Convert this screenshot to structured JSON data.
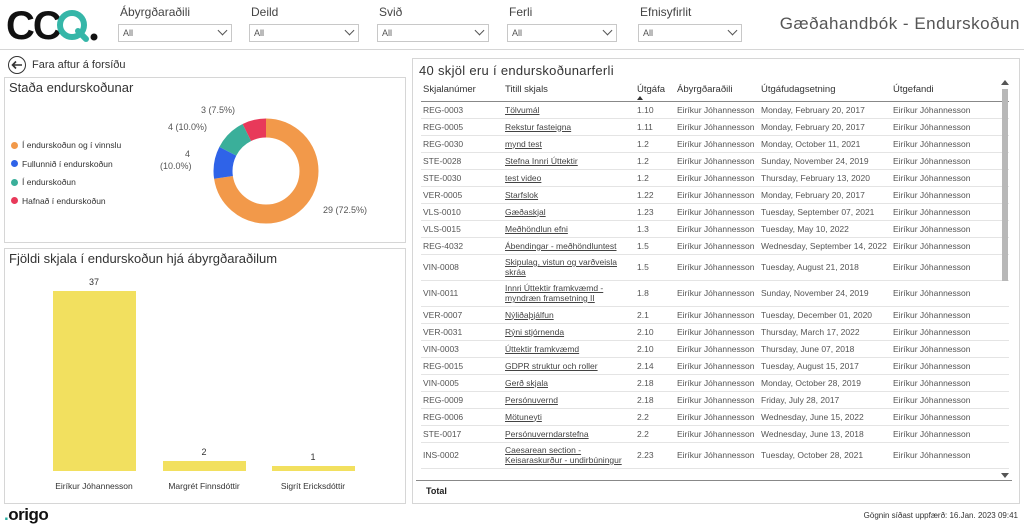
{
  "header": {
    "logo_text": "CCQ.",
    "title": "Gæðahandbók - Endurskoðun",
    "filters": [
      {
        "label": "Ábyrgðaraðili",
        "value": "All"
      },
      {
        "label": "Deild",
        "value": "All"
      },
      {
        "label": "Svið",
        "value": "All"
      },
      {
        "label": "Ferli",
        "value": "All"
      },
      {
        "label": "Efnisyfirlit",
        "value": "All"
      }
    ]
  },
  "back_link": "Fara aftur á forsíðu",
  "status_panel": {
    "title": "Staða endurskoðunar",
    "legend": [
      {
        "label": "Í endurskoðun og í vinnslu",
        "color": "#f2994a"
      },
      {
        "label": "Fullunnið í endurskoðun",
        "color": "#2f63e8"
      },
      {
        "label": "Í endurskoðun",
        "color": "#3aaf9a"
      },
      {
        "label": "Hafnað í endurskoðun",
        "color": "#e8395a"
      }
    ],
    "labels": {
      "a": "29 (72.5%)",
      "b1": "4",
      "b2": "(10.0%)",
      "c": "4 (10.0%)",
      "d": "3 (7.5%)"
    }
  },
  "owners_panel": {
    "title": "Fjöldi skjala í endurskoðun hjá ábyrgðaraðilum"
  },
  "chart_data": [
    {
      "type": "pie",
      "title": "Staða endurskoðunar",
      "categories": [
        "Í endurskoðun og í vinnslu",
        "Fullunnið í endurskoðun",
        "Í endurskoðun",
        "Hafnað í endurskoðun"
      ],
      "values": [
        29,
        4,
        4,
        3
      ],
      "percent": [
        72.5,
        10.0,
        10.0,
        7.5
      ],
      "colors": [
        "#f2994a",
        "#2f63e8",
        "#3aaf9a",
        "#e8395a"
      ],
      "donut": true,
      "legend": "left"
    },
    {
      "type": "bar",
      "title": "Fjöldi skjala í endurskoðun hjá ábyrgðaraðilum",
      "categories": [
        "Eiríkur Jóhannesson",
        "Margrét Finnsdóttir",
        "Sigrít Ericksdóttir"
      ],
      "values": [
        37,
        2,
        1
      ],
      "color": "#f2e05f"
    }
  ],
  "table": {
    "title": "40 skjöl eru í endurskoðunarferli",
    "columns": [
      "Skjalanúmer",
      "Titill skjals",
      "Útgáfa",
      "Ábyrgðaraðili",
      "Útgáfudagsetning",
      "Útgefandi"
    ],
    "rows": [
      [
        "REG-0003",
        "Tölvumál",
        "1.10",
        "Eiríkur Jóhannesson",
        "Monday, February 20, 2017",
        "Eiríkur Jóhannesson"
      ],
      [
        "REG-0005",
        "Rekstur fasteigna",
        "1.11",
        "Eiríkur Jóhannesson",
        "Monday, February 20, 2017",
        "Eiríkur Jóhannesson"
      ],
      [
        "REG-0030",
        "mynd test",
        "1.2",
        "Eiríkur Jóhannesson",
        "Monday, October 11, 2021",
        "Eiríkur Jóhannesson"
      ],
      [
        "STE-0028",
        "Stefna Innri Úttektir",
        "1.2",
        "Eiríkur Jóhannesson",
        "Sunday, November 24, 2019",
        "Eiríkur Jóhannesson"
      ],
      [
        "STE-0030",
        "test video",
        "1.2",
        "Eiríkur Jóhannesson",
        "Thursday, February 13, 2020",
        "Eiríkur Jóhannesson"
      ],
      [
        "VER-0005",
        "Starfslok",
        "1.22",
        "Eiríkur Jóhannesson",
        "Monday, February 20, 2017",
        "Eiríkur Jóhannesson"
      ],
      [
        "VLS-0010",
        "Gæðaskjal",
        "1.23",
        "Eiríkur Jóhannesson",
        "Tuesday, September 07, 2021",
        "Eiríkur Jóhannesson"
      ],
      [
        "VLS-0015",
        "Meðhöndlun efni",
        "1.3",
        "Eiríkur Jóhannesson",
        "Tuesday, May 10, 2022",
        "Eiríkur Jóhannesson"
      ],
      [
        "REG-4032",
        "Ábendingar - meðhöndluntest",
        "1.5",
        "Eiríkur Jóhannesson",
        "Wednesday, September 14, 2022",
        "Eiríkur Jóhannesson"
      ],
      [
        "VIN-0008",
        "Skipulag, vistun og varðveisla skráa",
        "1.5",
        "Eiríkur Jóhannesson",
        "Tuesday, August 21, 2018",
        "Eiríkur Jóhannesson"
      ],
      [
        "VIN-0011",
        "Innri Úttektir framkvæmd - myndræn framsetning II",
        "1.8",
        "Eiríkur Jóhannesson",
        "Sunday, November 24, 2019",
        "Eiríkur Jóhannesson"
      ],
      [
        "VER-0007",
        "Nýliðaþjálfun",
        "2.1",
        "Eiríkur Jóhannesson",
        "Tuesday, December 01, 2020",
        "Eiríkur Jóhannesson"
      ],
      [
        "VER-0031",
        "Rýni stjórnenda",
        "2.10",
        "Eiríkur Jóhannesson",
        "Thursday, March 17, 2022",
        "Eiríkur Jóhannesson"
      ],
      [
        "VIN-0003",
        "Úttektir framkvæmd",
        "2.10",
        "Eiríkur Jóhannesson",
        "Thursday, June 07, 2018",
        "Eiríkur Jóhannesson"
      ],
      [
        "REG-0015",
        "GDPR struktur och roller",
        "2.14",
        "Eiríkur Jóhannesson",
        "Tuesday, August 15, 2017",
        "Eiríkur Jóhannesson"
      ],
      [
        "VIN-0005",
        "Gerð skjala",
        "2.18",
        "Eiríkur Jóhannesson",
        "Monday, October 28, 2019",
        "Eiríkur Jóhannesson"
      ],
      [
        "REG-0009",
        "Persónuvernd",
        "2.18",
        "Eiríkur Jóhannesson",
        "Friday, July 28, 2017",
        "Eiríkur Jóhannesson"
      ],
      [
        "REG-0006",
        "Mötuneyti",
        "2.2",
        "Eiríkur Jóhannesson",
        "Wednesday, June 15, 2022",
        "Eiríkur Jóhannesson"
      ],
      [
        "STE-0017",
        "Persónuverndarstefna",
        "2.2",
        "Eiríkur Jóhannesson",
        "Wednesday, June 13, 2018",
        "Eiríkur Jóhannesson"
      ],
      [
        "INS-0002",
        "Caesarean section - Keisaraskurður - undirbúningur",
        "2.23",
        "Eiríkur Jóhannesson",
        "Tuesday, October 28, 2021",
        "Eiríkur Jóhannesson"
      ]
    ],
    "total_label": "Total"
  },
  "footer": {
    "brand": "origo",
    "updated": "Gögnin síðast uppfærð: 16.Jan. 2023 09:41"
  }
}
